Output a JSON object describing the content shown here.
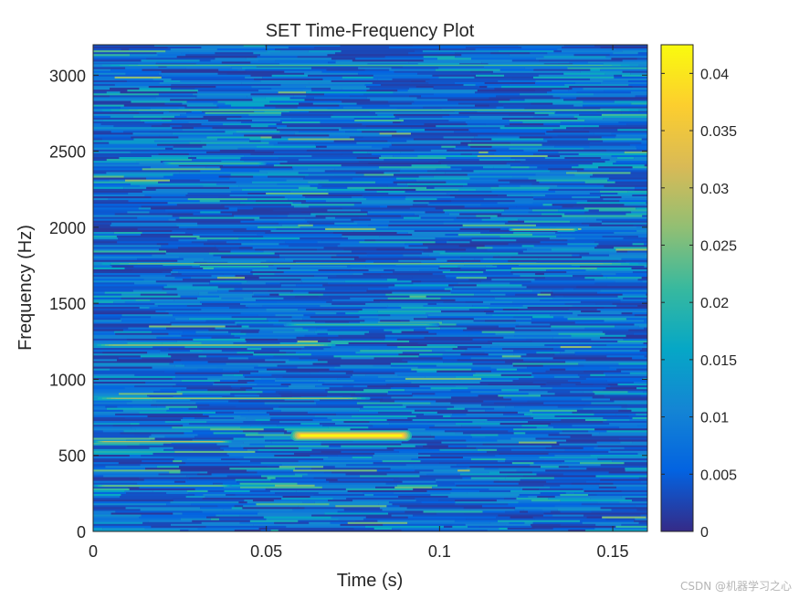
{
  "chart_data": {
    "type": "heatmap",
    "title": "SET Time-Frequency Plot",
    "xlabel": "Time (s)",
    "ylabel": "Frequency (Hz)",
    "xlim": [
      0,
      0.16
    ],
    "ylim": [
      0,
      3200
    ],
    "xticks": [
      0,
      0.05,
      0.1,
      0.15
    ],
    "xtick_labels": [
      "0",
      "0.05",
      "0.1",
      "0.15"
    ],
    "yticks": [
      0,
      500,
      1000,
      1500,
      2000,
      2500,
      3000
    ],
    "ytick_labels": [
      "0",
      "500",
      "1000",
      "1500",
      "2000",
      "2500",
      "3000"
    ],
    "colormap": "parula",
    "clim": [
      0,
      0.0425
    ],
    "colorbar": {
      "ticks": [
        0,
        0.005,
        0.01,
        0.015,
        0.02,
        0.025,
        0.03,
        0.035,
        0.04
      ],
      "tick_labels": [
        "0",
        "0.005",
        "0.01",
        "0.015",
        "0.02",
        "0.025",
        "0.03",
        "0.035",
        "0.04"
      ]
    },
    "background_level": 0.006,
    "features": [
      {
        "t_start": 0.057,
        "t_end": 0.092,
        "f_center": 630,
        "f_width": 35,
        "peak": 0.042
      },
      {
        "t_start": 0.0,
        "t_end": 0.04,
        "f_center": 590,
        "f_width": 8,
        "peak": 0.032
      },
      {
        "t_start": 0.0,
        "t_end": 0.08,
        "f_center": 875,
        "f_width": 8,
        "peak": 0.03
      },
      {
        "t_start": 0.0,
        "t_end": 0.07,
        "f_center": 1225,
        "f_width": 8,
        "peak": 0.031
      },
      {
        "t_start": 0.0,
        "t_end": 0.16,
        "f_center": 1760,
        "f_width": 6,
        "peak": 0.028
      },
      {
        "t_start": 0.12,
        "t_end": 0.14,
        "f_center": 1985,
        "f_width": 10,
        "peak": 0.03
      },
      {
        "t_start": 0.0,
        "t_end": 0.16,
        "f_center": 2770,
        "f_width": 6,
        "peak": 0.026
      },
      {
        "t_start": 0.0,
        "t_end": 0.16,
        "f_center": 3065,
        "f_width": 6,
        "peak": 0.024
      },
      {
        "t_start": 0.0,
        "t_end": 0.04,
        "f_center": 300,
        "f_width": 8,
        "peak": 0.028
      },
      {
        "t_start": 0.02,
        "t_end": 0.05,
        "f_center": 2420,
        "f_width": 12,
        "peak": 0.022
      },
      {
        "t_start": 0.055,
        "t_end": 0.1,
        "f_center": 1360,
        "f_width": 12,
        "peak": 0.022
      }
    ]
  },
  "watermark": "CSDN @机器学习之心"
}
